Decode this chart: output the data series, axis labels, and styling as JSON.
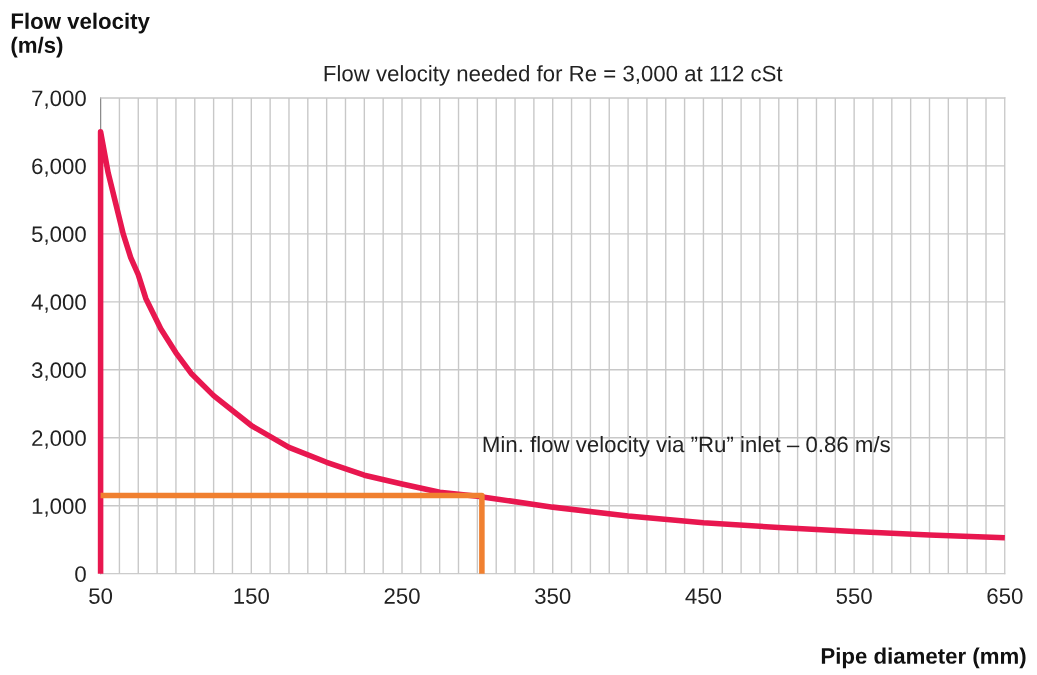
{
  "chart_data": {
    "type": "line",
    "title": "Flow velocity needed for Re = 3,000 at 112 cSt",
    "xlabel": "Pipe diameter (mm)",
    "ylabel": "Flow velocity\n(m/s)",
    "series": [
      {
        "color": "#e8174f",
        "x": [
          50,
          50,
          55,
          60,
          65,
          70,
          75,
          80,
          90,
          100,
          110,
          125,
          150,
          175,
          200,
          225,
          250,
          275,
          300,
          350,
          400,
          450,
          500,
          550,
          600,
          650
        ],
        "values": [
          0,
          6500,
          5900,
          5450,
          5000,
          4650,
          4400,
          4050,
          3600,
          3250,
          2950,
          2620,
          2180,
          1860,
          1640,
          1450,
          1320,
          1200,
          1140,
          980,
          850,
          750,
          680,
          620,
          570,
          530
        ]
      },
      {
        "color": "#f08030",
        "x": [
          50,
          303,
          303
        ],
        "values": [
          1150,
          1150,
          0
        ]
      }
    ],
    "annotations": [
      {
        "text": "Min. flow velocity via ”Ru” inlet – 0.86 m/s",
        "x": 303,
        "y": 1150
      }
    ],
    "xlim": [
      50,
      650
    ],
    "ylim": [
      0,
      7000
    ],
    "xticks": [
      50,
      {
        "value": 62.5,
        "label": null
      },
      {
        "value": 75,
        "label": null
      },
      {
        "value": 87.5,
        "label": null
      },
      {
        "value": 100,
        "label": null
      },
      {
        "value": 112.5,
        "label": null
      },
      {
        "value": 125,
        "label": null
      },
      {
        "value": 137.5,
        "label": null
      },
      150,
      {
        "value": 162.5,
        "label": null
      },
      {
        "value": 175,
        "label": null
      },
      {
        "value": 187.5,
        "label": null
      },
      {
        "value": 200,
        "label": null
      },
      {
        "value": 212.5,
        "label": null
      },
      {
        "value": 225,
        "label": null
      },
      {
        "value": 237.5,
        "label": null
      },
      250,
      {
        "value": 262.5,
        "label": null
      },
      {
        "value": 275,
        "label": null
      },
      {
        "value": 287.5,
        "label": null
      },
      {
        "value": 300,
        "label": null
      },
      {
        "value": 312.5,
        "label": null
      },
      {
        "value": 325,
        "label": null
      },
      {
        "value": 337.5,
        "label": null
      },
      350,
      {
        "value": 362.5,
        "label": null
      },
      {
        "value": 375,
        "label": null
      },
      {
        "value": 387.5,
        "label": null
      },
      {
        "value": 400,
        "label": null
      },
      {
        "value": 412.5,
        "label": null
      },
      {
        "value": 425,
        "label": null
      },
      {
        "value": 437.5,
        "label": null
      },
      450,
      {
        "value": 462.5,
        "label": null
      },
      {
        "value": 475,
        "label": null
      },
      {
        "value": 487.5,
        "label": null
      },
      {
        "value": 500,
        "label": null
      },
      {
        "value": 512.5,
        "label": null
      },
      {
        "value": 525,
        "label": null
      },
      {
        "value": 537.5,
        "label": null
      },
      550,
      {
        "value": 562.5,
        "label": null
      },
      {
        "value": 575,
        "label": null
      },
      {
        "value": 587.5,
        "label": null
      },
      {
        "value": 600,
        "label": null
      },
      {
        "value": 612.5,
        "label": null
      },
      {
        "value": 625,
        "label": null
      },
      {
        "value": 637.5,
        "label": null
      },
      650
    ],
    "yticks": [
      {
        "value": 0,
        "label": "0"
      },
      {
        "value": 1000,
        "label": "1,000"
      },
      {
        "value": 2000,
        "label": "2,000"
      },
      {
        "value": 3000,
        "label": "3,000"
      },
      {
        "value": 4000,
        "label": "4,000"
      },
      {
        "value": 5000,
        "label": "5,000"
      },
      {
        "value": 6000,
        "label": "6,000"
      },
      {
        "value": 7000,
        "label": "7,000"
      }
    ],
    "grid": true,
    "marker": "none",
    "line_style": "solid"
  }
}
